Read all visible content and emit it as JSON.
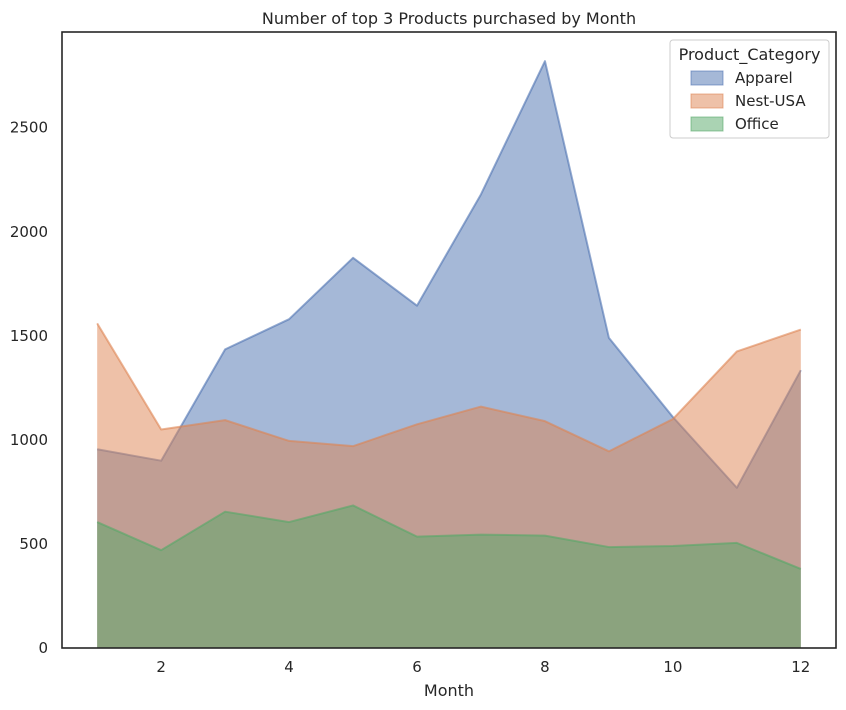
{
  "chart_data": {
    "type": "area",
    "title": "Number of top 3 Products purchased by Month",
    "xlabel": "Month",
    "ylabel": "",
    "x": [
      1,
      2,
      3,
      4,
      5,
      6,
      7,
      8,
      9,
      10,
      11,
      12
    ],
    "xticks": [
      2,
      4,
      6,
      8,
      10,
      12
    ],
    "yticks": [
      0,
      500,
      1000,
      1500,
      2000,
      2500
    ],
    "xlim": [
      0.45,
      12.55
    ],
    "ylim": [
      0,
      2960
    ],
    "stacked": false,
    "grid": false,
    "legend": {
      "title": "Product_Category",
      "placement": "top-right"
    },
    "series": [
      {
        "name": "Apparel",
        "color": "#4c72b0",
        "values": [
          955,
          900,
          1435,
          1580,
          1875,
          1645,
          2180,
          2820,
          1490,
          1110,
          770,
          1335
        ]
      },
      {
        "name": "Nest-USA",
        "color": "#dd8452",
        "values": [
          1560,
          1050,
          1095,
          995,
          970,
          1075,
          1160,
          1090,
          945,
          1100,
          1425,
          1530
        ]
      },
      {
        "name": "Office",
        "color": "#55a868",
        "values": [
          605,
          470,
          655,
          605,
          685,
          535,
          545,
          540,
          485,
          490,
          505,
          380
        ]
      }
    ]
  }
}
